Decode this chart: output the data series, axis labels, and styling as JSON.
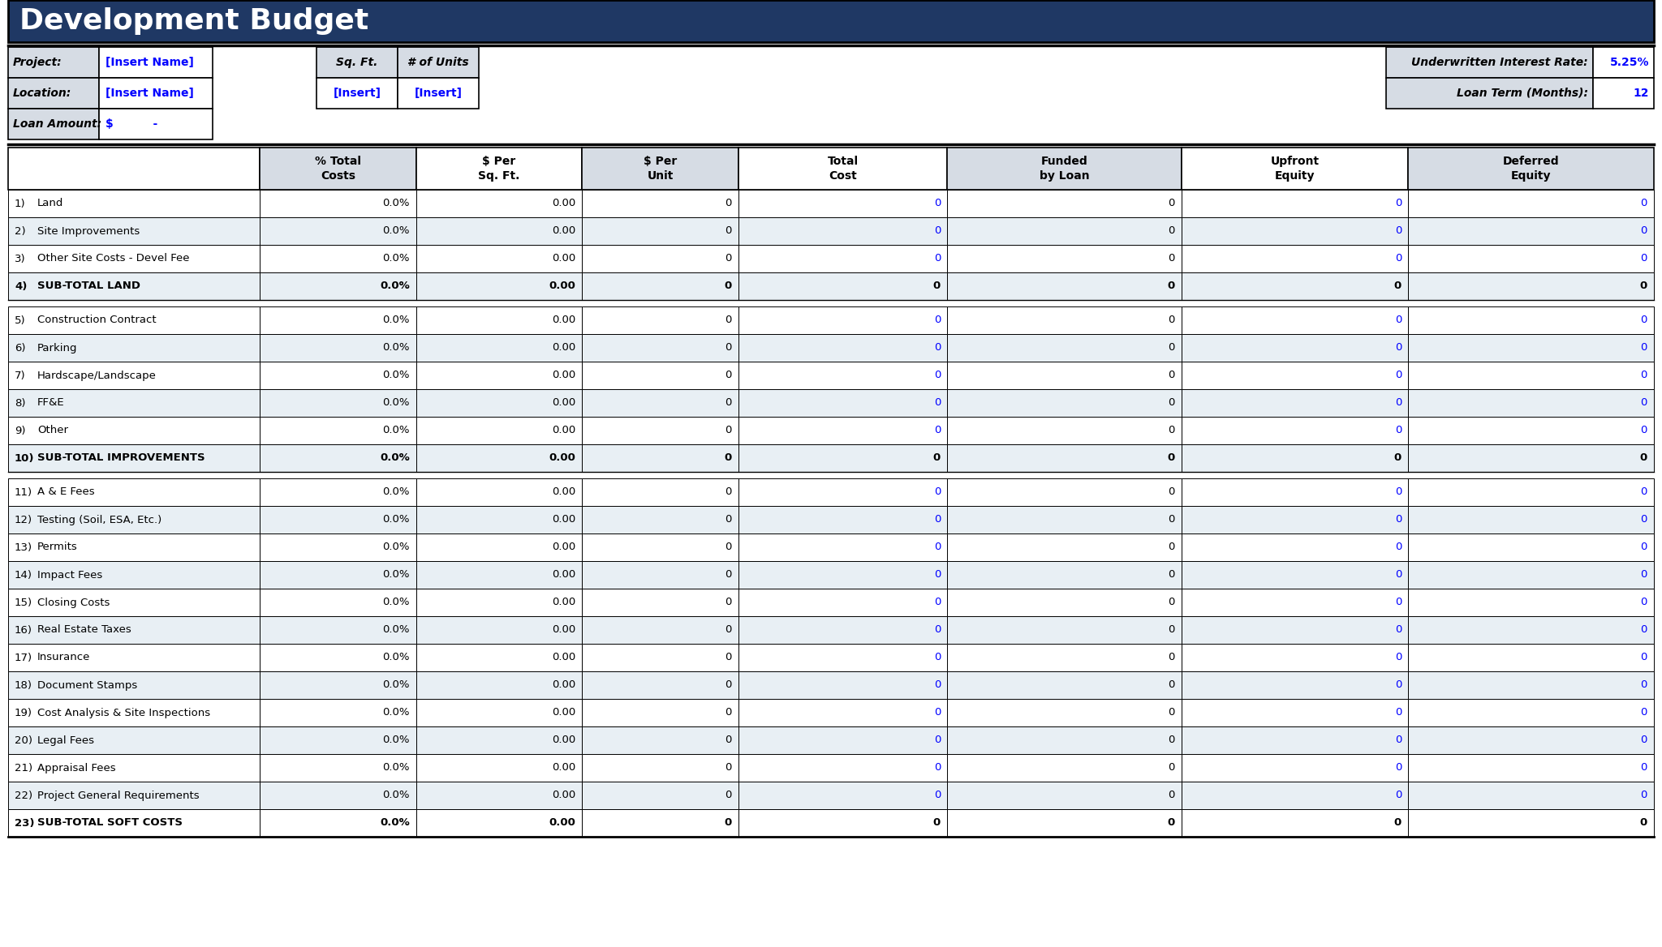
{
  "title": "Development Budget",
  "title_bg": "#1F3864",
  "title_color": "#FFFFFF",
  "header_bg": "#D6DCE4",
  "shade_color": "#E8EFF4",
  "white_bg": "#FFFFFF",
  "blue_text": "#0000FF",
  "black_text": "#000000",
  "info_labels": [
    "Project:",
    "Location:",
    "Loan Amount:"
  ],
  "info_values": [
    "[Insert Name]",
    "[Insert Name]",
    "$          -"
  ],
  "mid_labels": [
    "Sq. Ft.",
    "# of Units"
  ],
  "mid_values": [
    "[Insert]",
    "[Insert]"
  ],
  "right_labels": [
    "Underwritten Interest Rate:",
    "Loan Term (Months):"
  ],
  "right_values": [
    "5.25%",
    "12"
  ],
  "col_headers": [
    "% Total\nCosts",
    "$ Per\nSq. Ft.",
    "$ Per\nUnit",
    "Total\nCost",
    "Funded\nby Loan",
    "Upfront\nEquity",
    "Deferred\nEquity"
  ],
  "sections": [
    {
      "rows": [
        {
          "num": "1)",
          "label": "Land",
          "values": [
            "0.0%",
            "0.00",
            "0",
            "0",
            "0",
            "0",
            "0"
          ],
          "blue_cols": [
            3,
            5,
            6
          ],
          "bold": false,
          "shaded": false
        },
        {
          "num": "2)",
          "label": "Site Improvements",
          "values": [
            "0.0%",
            "0.00",
            "0",
            "0",
            "0",
            "0",
            "0"
          ],
          "blue_cols": [
            3,
            5,
            6
          ],
          "bold": false,
          "shaded": true
        },
        {
          "num": "3)",
          "label": "Other Site Costs - Devel Fee",
          "values": [
            "0.0%",
            "0.00",
            "0",
            "0",
            "0",
            "0",
            "0"
          ],
          "blue_cols": [
            3,
            5,
            6
          ],
          "bold": false,
          "shaded": false
        },
        {
          "num": "4)",
          "label": "SUB-TOTAL LAND",
          "values": [
            "0.0%",
            "0.00",
            "0",
            "0",
            "0",
            "0",
            "0"
          ],
          "blue_cols": [],
          "bold": true,
          "shaded": true
        }
      ]
    },
    {
      "rows": [
        {
          "num": "5)",
          "label": "Construction Contract",
          "values": [
            "0.0%",
            "0.00",
            "0",
            "0",
            "0",
            "0",
            "0"
          ],
          "blue_cols": [
            3,
            5,
            6
          ],
          "bold": false,
          "shaded": false
        },
        {
          "num": "6)",
          "label": "Parking",
          "values": [
            "0.0%",
            "0.00",
            "0",
            "0",
            "0",
            "0",
            "0"
          ],
          "blue_cols": [
            3,
            5,
            6
          ],
          "bold": false,
          "shaded": true
        },
        {
          "num": "7)",
          "label": "Hardscape/Landscape",
          "values": [
            "0.0%",
            "0.00",
            "0",
            "0",
            "0",
            "0",
            "0"
          ],
          "blue_cols": [
            3,
            5,
            6
          ],
          "bold": false,
          "shaded": false
        },
        {
          "num": "8)",
          "label": "FF&E",
          "values": [
            "0.0%",
            "0.00",
            "0",
            "0",
            "0",
            "0",
            "0"
          ],
          "blue_cols": [
            3,
            5,
            6
          ],
          "bold": false,
          "shaded": true
        },
        {
          "num": "9)",
          "label": "Other",
          "values": [
            "0.0%",
            "0.00",
            "0",
            "0",
            "0",
            "0",
            "0"
          ],
          "blue_cols": [
            3,
            5,
            6
          ],
          "bold": false,
          "shaded": false
        },
        {
          "num": "10)",
          "label": "SUB-TOTAL IMPROVEMENTS",
          "values": [
            "0.0%",
            "0.00",
            "0",
            "0",
            "0",
            "0",
            "0"
          ],
          "blue_cols": [],
          "bold": true,
          "shaded": true
        }
      ]
    },
    {
      "rows": [
        {
          "num": "11)",
          "label": "A & E Fees",
          "values": [
            "0.0%",
            "0.00",
            "0",
            "0",
            "0",
            "0",
            "0"
          ],
          "blue_cols": [
            3,
            5,
            6
          ],
          "bold": false,
          "shaded": false
        },
        {
          "num": "12)",
          "label": "Testing (Soil, ESA, Etc.)",
          "values": [
            "0.0%",
            "0.00",
            "0",
            "0",
            "0",
            "0",
            "0"
          ],
          "blue_cols": [
            3,
            5,
            6
          ],
          "bold": false,
          "shaded": true
        },
        {
          "num": "13)",
          "label": "Permits",
          "values": [
            "0.0%",
            "0.00",
            "0",
            "0",
            "0",
            "0",
            "0"
          ],
          "blue_cols": [
            3,
            5,
            6
          ],
          "bold": false,
          "shaded": false
        },
        {
          "num": "14)",
          "label": "Impact Fees",
          "values": [
            "0.0%",
            "0.00",
            "0",
            "0",
            "0",
            "0",
            "0"
          ],
          "blue_cols": [
            3,
            5,
            6
          ],
          "bold": false,
          "shaded": true
        },
        {
          "num": "15)",
          "label": "Closing Costs",
          "values": [
            "0.0%",
            "0.00",
            "0",
            "0",
            "0",
            "0",
            "0"
          ],
          "blue_cols": [
            3,
            5,
            6
          ],
          "bold": false,
          "shaded": false
        },
        {
          "num": "16)",
          "label": "Real Estate Taxes",
          "values": [
            "0.0%",
            "0.00",
            "0",
            "0",
            "0",
            "0",
            "0"
          ],
          "blue_cols": [
            3,
            5,
            6
          ],
          "bold": false,
          "shaded": true
        },
        {
          "num": "17)",
          "label": "Insurance",
          "values": [
            "0.0%",
            "0.00",
            "0",
            "0",
            "0",
            "0",
            "0"
          ],
          "blue_cols": [
            3,
            5,
            6
          ],
          "bold": false,
          "shaded": false
        },
        {
          "num": "18)",
          "label": "Document Stamps",
          "values": [
            "0.0%",
            "0.00",
            "0",
            "0",
            "0",
            "0",
            "0"
          ],
          "blue_cols": [
            3,
            5,
            6
          ],
          "bold": false,
          "shaded": true
        },
        {
          "num": "19)",
          "label": "Cost Analysis & Site Inspections",
          "values": [
            "0.0%",
            "0.00",
            "0",
            "0",
            "0",
            "0",
            "0"
          ],
          "blue_cols": [
            3,
            5,
            6
          ],
          "bold": false,
          "shaded": false
        },
        {
          "num": "20)",
          "label": "Legal Fees",
          "values": [
            "0.0%",
            "0.00",
            "0",
            "0",
            "0",
            "0",
            "0"
          ],
          "blue_cols": [
            3,
            5,
            6
          ],
          "bold": false,
          "shaded": true
        },
        {
          "num": "21)",
          "label": "Appraisal Fees",
          "values": [
            "0.0%",
            "0.00",
            "0",
            "0",
            "0",
            "0",
            "0"
          ],
          "blue_cols": [
            3,
            5,
            6
          ],
          "bold": false,
          "shaded": false
        },
        {
          "num": "22)",
          "label": "Project General Requirements",
          "values": [
            "0.0%",
            "0.00",
            "0",
            "0",
            "0",
            "0",
            "0"
          ],
          "blue_cols": [
            3,
            5,
            6
          ],
          "bold": false,
          "shaded": true
        },
        {
          "num": "23)",
          "label": "SUB-TOTAL SOFT COSTS",
          "values": [
            "0.0%",
            "0.00",
            "0",
            "0",
            "0",
            "0",
            "0"
          ],
          "blue_cols": [],
          "bold": true,
          "shaded": false
        }
      ]
    }
  ]
}
